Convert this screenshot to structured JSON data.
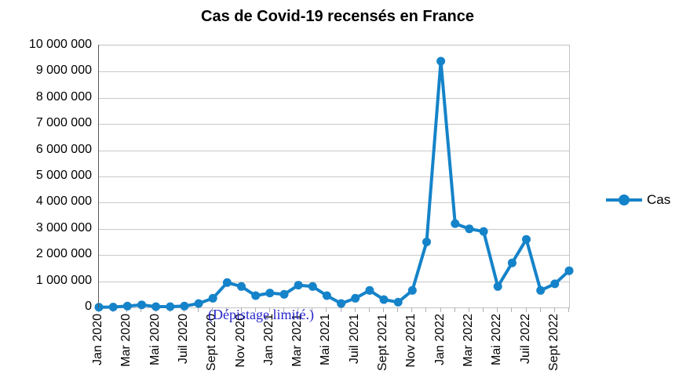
{
  "title": "Cas de Covid-19 recensés en France",
  "annotation": "(Dépistage limité.)",
  "legend": {
    "label": "Cas",
    "position": "right"
  },
  "colors": {
    "series": "#1583c9",
    "annotation": "#2424cd",
    "gridline": "#c9c9c9",
    "axis": "#595959",
    "tick": "#b0b0b0",
    "text": "#000000"
  },
  "y_axis": {
    "tick_labels": [
      "0",
      "1 000 000",
      "2 000 000",
      "3 000 000",
      "4 000 000",
      "5 000 000",
      "6 000 000",
      "7 000 000",
      "8 000 000",
      "9 000 000",
      "10 000 000"
    ],
    "min": 0,
    "max": 10000000
  },
  "x_axis": {
    "tick_labels": [
      "Jan 2020",
      "Mar 2020",
      "Mai 2020",
      "Juil 2020",
      "Sept 2020",
      "Nov 2020",
      "Jan 2021",
      "Mar 2021",
      "Mai 2021",
      "Juil 2021",
      "Sept 2021",
      "Nov 2021",
      "Jan 2022",
      "Mar 2022",
      "Mai 2022",
      "Juil 2022",
      "Sept 2022"
    ]
  },
  "chart_data": {
    "type": "line",
    "title": "Cas de Covid-19 recensés en France",
    "xlabel": "",
    "ylabel": "",
    "ylim": [
      0,
      10000000
    ],
    "grid": true,
    "legend_position": "right",
    "marker": "circle",
    "x": [
      "Jan 2020",
      "Fév 2020",
      "Mar 2020",
      "Avr 2020",
      "Mai 2020",
      "Juin 2020",
      "Juil 2020",
      "Août 2020",
      "Sept 2020",
      "Oct 2020",
      "Nov 2020",
      "Déc 2020",
      "Jan 2021",
      "Fév 2021",
      "Mar 2021",
      "Avr 2021",
      "Mai 2021",
      "Juin 2021",
      "Juil 2021",
      "Août 2021",
      "Sept 2021",
      "Oct 2021",
      "Nov 2021",
      "Déc 2021",
      "Jan 2022",
      "Fév 2022",
      "Mar 2022",
      "Avr 2022",
      "Mai 2022",
      "Juin 2022",
      "Juil 2022",
      "Août 2022",
      "Sept 2022",
      "Oct 2022"
    ],
    "series": [
      {
        "name": "Cas",
        "values": [
          10000,
          15000,
          50000,
          100000,
          30000,
          30000,
          50000,
          150000,
          350000,
          950000,
          800000,
          450000,
          550000,
          500000,
          850000,
          800000,
          450000,
          150000,
          350000,
          650000,
          300000,
          200000,
          650000,
          2500000,
          9400000,
          3200000,
          3000000,
          2900000,
          800000,
          1700000,
          2600000,
          650000,
          900000,
          1400000
        ]
      }
    ],
    "annotations": [
      {
        "text": "(Dépistage limité.)",
        "approx_position": "y≈1500000 over Mar–Sept 2020"
      }
    ]
  }
}
